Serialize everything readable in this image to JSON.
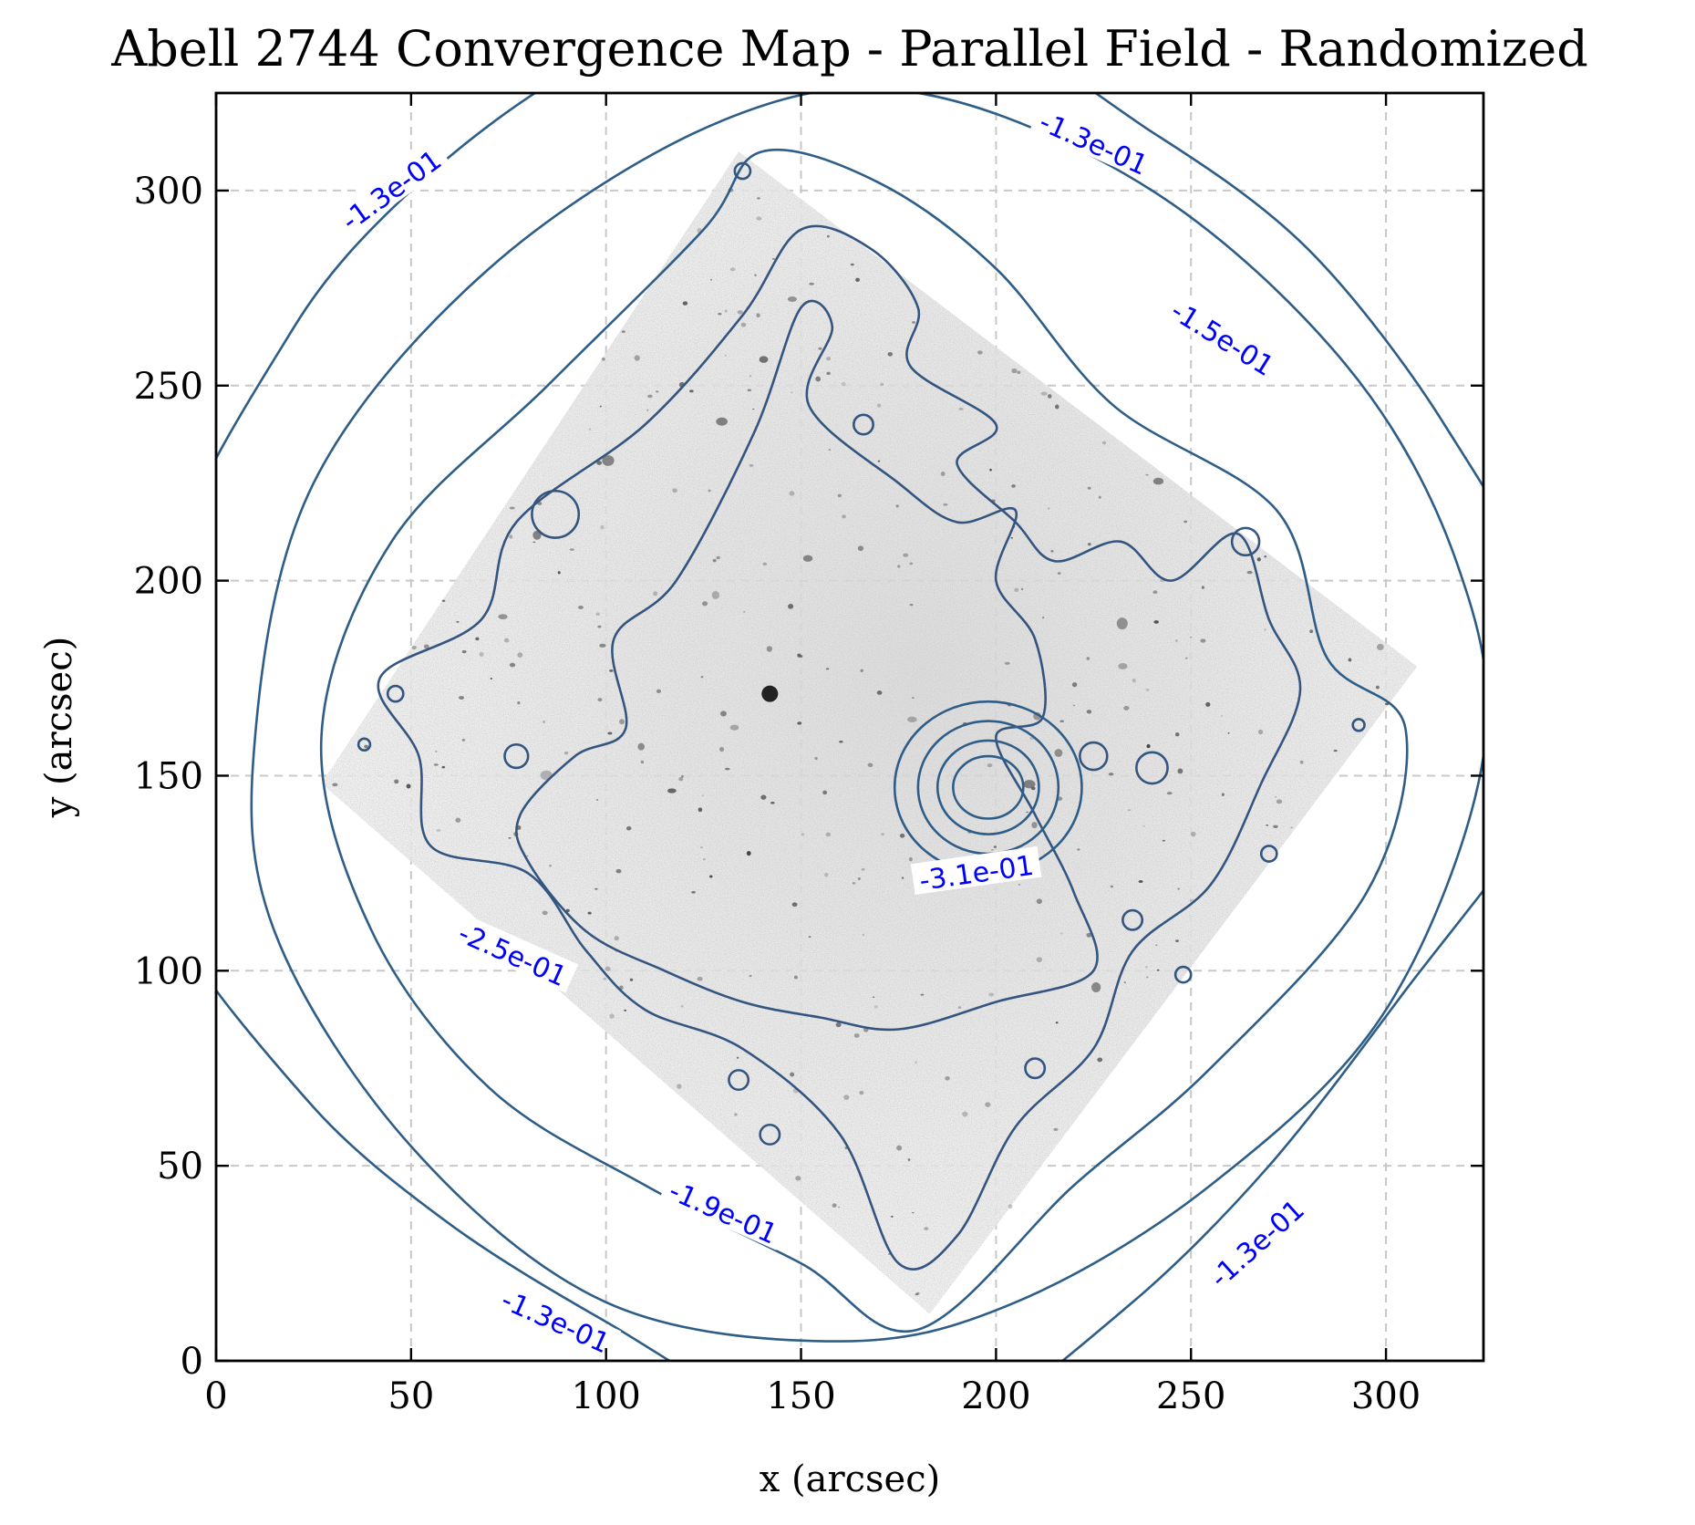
{
  "chart_data": {
    "type": "contour",
    "title": "Abell 2744 Convergence Map - Parallel Field - Randomized",
    "xlabel": "x (arcsec)",
    "ylabel": "y (arcsec)",
    "xlim": [
      0,
      325
    ],
    "ylim": [
      0,
      325
    ],
    "xticks": [
      0,
      50,
      100,
      150,
      200,
      250,
      300
    ],
    "yticks": [
      0,
      50,
      100,
      150,
      200,
      250,
      300
    ],
    "grid": true,
    "background": "grayscale HST image of parallel field (rotated square footprint)",
    "contour_color": "#2e5d87",
    "label_color": "#0000ff",
    "contour_levels": [
      -0.13,
      -0.15,
      -0.19,
      -0.25,
      -0.31
    ],
    "contour_labels": [
      {
        "text": "-1.3e-01",
        "x": 45,
        "y": 300,
        "angle": -36
      },
      {
        "text": "-1.3e-01",
        "x": 225,
        "y": 312,
        "angle": 24
      },
      {
        "text": "-1.5e-01",
        "x": 258,
        "y": 262,
        "angle": 32
      },
      {
        "text": "-3.1e-01",
        "x": 195,
        "y": 125,
        "angle": -8
      },
      {
        "text": "-2.5e-01",
        "x": 76,
        "y": 104,
        "angle": 24
      },
      {
        "text": "-1.9e-01",
        "x": 130,
        "y": 38,
        "angle": 24
      },
      {
        "text": "-1.3e-01",
        "x": 87,
        "y": 10,
        "angle": 24
      },
      {
        "text": "-1.3e-01",
        "x": 267,
        "y": 30,
        "angle": -42
      }
    ]
  }
}
